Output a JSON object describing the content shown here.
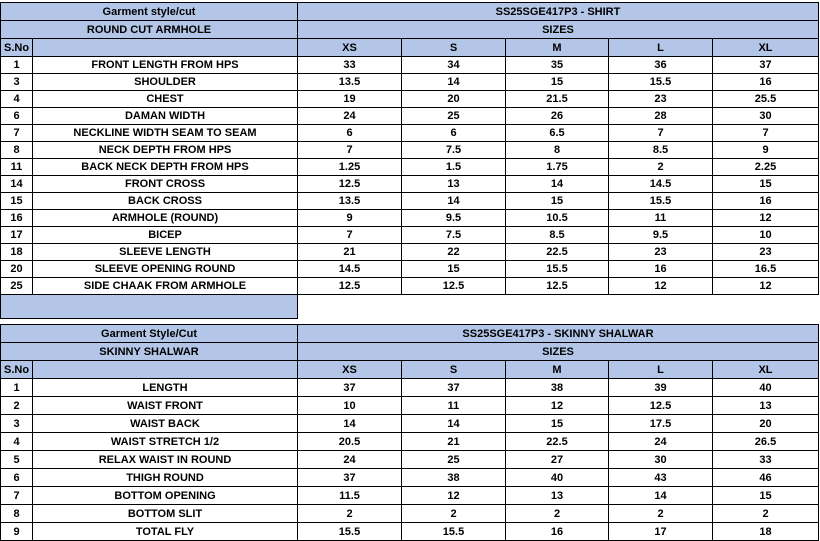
{
  "shirt": {
    "style_label": "Garment style/cut",
    "code": "SS25SGE417P3 - SHIRT",
    "cut": "ROUND CUT ARMHOLE",
    "sizes_label": "SIZES",
    "sno_label": "S.No",
    "sizes": [
      "XS",
      "S",
      "M",
      "L",
      "XL"
    ],
    "rows": [
      [
        1,
        "FRONT LENGTH FROM HPS",
        33,
        34,
        35,
        36,
        37
      ],
      [
        3,
        "SHOULDER",
        13.5,
        14,
        15,
        15.5,
        16
      ],
      [
        4,
        "CHEST",
        19,
        20,
        21.5,
        23,
        25.5
      ],
      [
        6,
        "DAMAN WIDTH",
        24,
        25,
        26,
        28,
        30
      ],
      [
        7,
        "NECKLINE WIDTH SEAM TO SEAM",
        6,
        6,
        6.5,
        7,
        7
      ],
      [
        8,
        "NECK DEPTH FROM HPS",
        7,
        7.5,
        8,
        8.5,
        9
      ],
      [
        11,
        "BACK NECK DEPTH FROM HPS",
        1.25,
        1.5,
        1.75,
        2,
        2.25
      ],
      [
        14,
        "FRONT CROSS",
        12.5,
        13,
        14,
        14.5,
        15
      ],
      [
        15,
        "BACK CROSS",
        13.5,
        14,
        15,
        15.5,
        16
      ],
      [
        16,
        "ARMHOLE (ROUND)",
        9,
        9.5,
        10.5,
        11,
        12
      ],
      [
        17,
        "BICEP",
        7,
        7.5,
        8.5,
        9.5,
        10
      ],
      [
        18,
        "SLEEVE LENGTH",
        21,
        22,
        22.5,
        23,
        23
      ],
      [
        20,
        "SLEEVE OPENING ROUND",
        14.5,
        15,
        15.5,
        16,
        16.5
      ],
      [
        25,
        "SIDE CHAAK FROM ARMHOLE",
        12.5,
        12.5,
        12.5,
        12,
        12
      ]
    ]
  },
  "shalwar": {
    "style_label": "Garment Style/Cut",
    "code": "SS25SGE417P3 - SKINNY SHALWAR",
    "cut": "SKINNY SHALWAR",
    "sizes_label": "SIZES",
    "sno_label": "S.No",
    "sizes": [
      "XS",
      "S",
      "M",
      "L",
      "XL"
    ],
    "rows": [
      [
        1,
        "LENGTH",
        37,
        37,
        38,
        39,
        40
      ],
      [
        2,
        "WAIST FRONT",
        10,
        11,
        12,
        12.5,
        13
      ],
      [
        3,
        "WAIST BACK",
        14,
        14,
        15,
        17.5,
        20
      ],
      [
        4,
        "WAIST STRETCH 1/2",
        20.5,
        21,
        22.5,
        24,
        26.5
      ],
      [
        5,
        "RELAX WAIST IN ROUND",
        24,
        25,
        27,
        30,
        33
      ],
      [
        6,
        "THIGH ROUND",
        37,
        38,
        40,
        43,
        46
      ],
      [
        7,
        "BOTTOM OPENING",
        11.5,
        12,
        13,
        14,
        15
      ],
      [
        8,
        "BOTTOM SLIT",
        2,
        2,
        2,
        2,
        2
      ],
      [
        9,
        "TOTAL FLY",
        15.5,
        15.5,
        16,
        17,
        18
      ]
    ]
  }
}
